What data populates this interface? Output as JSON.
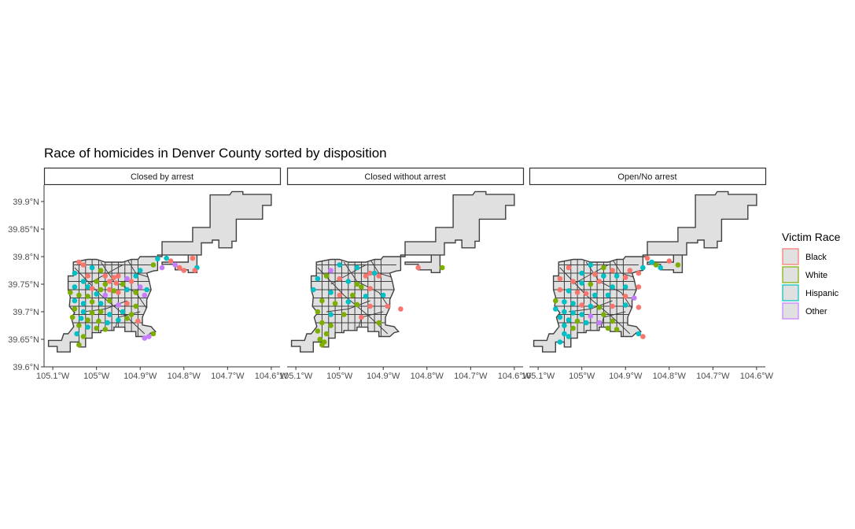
{
  "title": "Race of homicides in Denver County sorted by disposition",
  "colors": {
    "Black": "#F8766D",
    "White": "#7CAE00",
    "Hispanic": "#00BFC4",
    "Other": "#C77CFF"
  },
  "chart_data": {
    "type": "scatter",
    "title": "Race of homicides in Denver County sorted by disposition",
    "xlabel": "",
    "ylabel": "",
    "xlim": [
      -105.12,
      -104.58
    ],
    "ylim": [
      39.6,
      39.93
    ],
    "x_ticks": [
      -105.1,
      -105.0,
      -104.9,
      -104.8,
      -104.7,
      -104.6
    ],
    "x_tick_labels": [
      "105.1°W",
      "105°W",
      "104.9°W",
      "104.8°W",
      "104.7°W",
      "104.6°W"
    ],
    "y_ticks": [
      39.6,
      39.65,
      39.7,
      39.75,
      39.8,
      39.85,
      39.9
    ],
    "y_tick_labels": [
      "39.6°N",
      "39.65°N",
      "39.7°N",
      "39.75°N",
      "39.8°N",
      "39.85°N",
      "39.9°N"
    ],
    "grid": false,
    "legend": {
      "title": "Victim Race",
      "position": "right",
      "entries": [
        "Black",
        "White",
        "Hispanic",
        "Other"
      ]
    },
    "panels": [
      {
        "name": "Closed by arrest",
        "points": [
          [
            -105.04,
            39.79,
            "Black"
          ],
          [
            -105.03,
            39.785,
            "Black"
          ],
          [
            -105.01,
            39.78,
            "Hispanic"
          ],
          [
            -104.99,
            39.775,
            "White"
          ],
          [
            -105.05,
            39.77,
            "Hispanic"
          ],
          [
            -105.02,
            39.765,
            "Black"
          ],
          [
            -104.98,
            39.765,
            "Black"
          ],
          [
            -104.96,
            39.762,
            "Black"
          ],
          [
            -104.95,
            39.765,
            "Black"
          ],
          [
            -104.93,
            39.76,
            "Other"
          ],
          [
            -104.91,
            39.765,
            "Hispanic"
          ],
          [
            -105.03,
            39.755,
            "Hispanic"
          ],
          [
            -105.0,
            39.755,
            "White"
          ],
          [
            -104.98,
            39.75,
            "White"
          ],
          [
            -104.97,
            39.755,
            "Black"
          ],
          [
            -104.955,
            39.752,
            "Black"
          ],
          [
            -104.94,
            39.75,
            "White"
          ],
          [
            -104.92,
            39.755,
            "Black"
          ],
          [
            -105.05,
            39.745,
            "Hispanic"
          ],
          [
            -105.02,
            39.745,
            "Hispanic"
          ],
          [
            -105.01,
            39.742,
            "Black"
          ],
          [
            -104.99,
            39.74,
            "White"
          ],
          [
            -104.97,
            39.74,
            "Black"
          ],
          [
            -104.96,
            39.738,
            "White"
          ],
          [
            -104.93,
            39.74,
            "Hispanic"
          ],
          [
            -104.9,
            39.745,
            "Other"
          ],
          [
            -104.885,
            39.74,
            "Hispanic"
          ],
          [
            -105.06,
            39.735,
            "White"
          ],
          [
            -105.04,
            39.73,
            "White"
          ],
          [
            -105.02,
            39.728,
            "White"
          ],
          [
            -105.0,
            39.732,
            "Hispanic"
          ],
          [
            -104.98,
            39.73,
            "Other"
          ],
          [
            -104.95,
            39.735,
            "Black"
          ],
          [
            -104.91,
            39.735,
            "White"
          ],
          [
            -104.89,
            39.73,
            "Other"
          ],
          [
            -105.05,
            39.72,
            "Hispanic"
          ],
          [
            -105.03,
            39.715,
            "Hispanic"
          ],
          [
            -105.01,
            39.718,
            "White"
          ],
          [
            -104.99,
            39.715,
            "Hispanic"
          ],
          [
            -104.97,
            39.72,
            "White"
          ],
          [
            -104.95,
            39.712,
            "Other"
          ],
          [
            -104.93,
            39.715,
            "Black"
          ],
          [
            -104.91,
            39.71,
            "White"
          ],
          [
            -105.05,
            39.705,
            "White"
          ],
          [
            -105.03,
            39.7,
            "Hispanic"
          ],
          [
            -105.01,
            39.698,
            "White"
          ],
          [
            -104.99,
            39.7,
            "White"
          ],
          [
            -104.97,
            39.695,
            "Hispanic"
          ],
          [
            -104.94,
            39.7,
            "Hispanic"
          ],
          [
            -104.92,
            39.695,
            "White"
          ],
          [
            -105.055,
            39.69,
            "White"
          ],
          [
            -105.035,
            39.688,
            "Hispanic"
          ],
          [
            -105.02,
            39.685,
            "White"
          ],
          [
            -104.995,
            39.683,
            "White"
          ],
          [
            -104.975,
            39.68,
            "Hispanic"
          ],
          [
            -104.95,
            39.685,
            "Hispanic"
          ],
          [
            -104.93,
            39.688,
            "White"
          ],
          [
            -104.905,
            39.683,
            "Black"
          ],
          [
            -105.04,
            39.675,
            "White"
          ],
          [
            -105.02,
            39.672,
            "Hispanic"
          ],
          [
            -105.0,
            39.67,
            "White"
          ],
          [
            -104.98,
            39.668,
            "White"
          ],
          [
            -105.045,
            39.66,
            "Hispanic"
          ],
          [
            -105.03,
            39.655,
            "White"
          ],
          [
            -105.04,
            39.64,
            "White"
          ],
          [
            -104.87,
            39.66,
            "White"
          ],
          [
            -104.88,
            39.655,
            "Other"
          ],
          [
            -104.89,
            39.652,
            "Other"
          ],
          [
            -104.86,
            39.796,
            "Hispanic"
          ],
          [
            -104.84,
            39.797,
            "Hispanic"
          ],
          [
            -104.83,
            39.792,
            "Black"
          ],
          [
            -104.82,
            39.785,
            "Other"
          ],
          [
            -104.81,
            39.78,
            "Black"
          ],
          [
            -104.8,
            39.775,
            "Black"
          ],
          [
            -104.78,
            39.797,
            "Black"
          ],
          [
            -104.77,
            39.78,
            "Hispanic"
          ],
          [
            -104.775,
            39.775,
            "Black"
          ],
          [
            -104.87,
            39.785,
            "White"
          ],
          [
            -104.85,
            39.78,
            "Other"
          ],
          [
            -104.9,
            39.775,
            "Hispanic"
          ]
        ]
      },
      {
        "name": "Closed without arrest",
        "points": [
          [
            -105.0,
            39.785,
            "Hispanic"
          ],
          [
            -104.96,
            39.78,
            "Hispanic"
          ],
          [
            -104.93,
            39.77,
            "Black"
          ],
          [
            -104.91,
            39.765,
            "Black"
          ],
          [
            -104.92,
            39.77,
            "Hispanic"
          ],
          [
            -104.94,
            39.765,
            "Black"
          ],
          [
            -105.05,
            39.76,
            "Hispanic"
          ],
          [
            -105.03,
            39.765,
            "White"
          ],
          [
            -105.0,
            39.76,
            "Black"
          ],
          [
            -104.98,
            39.755,
            "Hispanic"
          ],
          [
            -104.96,
            39.75,
            "White"
          ],
          [
            -104.95,
            39.745,
            "White"
          ],
          [
            -104.93,
            39.742,
            "Black"
          ],
          [
            -105.06,
            39.74,
            "Hispanic"
          ],
          [
            -105.02,
            39.735,
            "Hispanic"
          ],
          [
            -105.0,
            39.73,
            "Black"
          ],
          [
            -104.97,
            39.73,
            "White"
          ],
          [
            -104.94,
            39.728,
            "Hispanic"
          ],
          [
            -104.9,
            39.73,
            "Hispanic"
          ],
          [
            -105.04,
            39.72,
            "White"
          ],
          [
            -105.01,
            39.715,
            "White"
          ],
          [
            -104.98,
            39.718,
            "Hispanic"
          ],
          [
            -104.96,
            39.713,
            "White"
          ],
          [
            -104.93,
            39.71,
            "Black"
          ],
          [
            -104.89,
            39.71,
            "Black"
          ],
          [
            -104.86,
            39.705,
            "Black"
          ],
          [
            -105.05,
            39.7,
            "White"
          ],
          [
            -105.02,
            39.695,
            "Hispanic"
          ],
          [
            -104.99,
            39.695,
            "White"
          ],
          [
            -104.95,
            39.69,
            "Black"
          ],
          [
            -105.04,
            39.68,
            "White"
          ],
          [
            -105.02,
            39.675,
            "White"
          ],
          [
            -104.91,
            39.68,
            "White"
          ],
          [
            -105.05,
            39.665,
            "White"
          ],
          [
            -105.03,
            39.66,
            "White"
          ],
          [
            -105.045,
            39.65,
            "White"
          ],
          [
            -105.035,
            39.645,
            "White"
          ],
          [
            -105.04,
            39.64,
            "White"
          ],
          [
            -104.82,
            39.78,
            "Black"
          ],
          [
            -104.765,
            39.78,
            "White"
          ],
          [
            -105.02,
            39.775,
            "Other"
          ]
        ]
      },
      {
        "name": "Open/No arrest",
        "points": [
          [
            -104.98,
            39.785,
            "Hispanic"
          ],
          [
            -104.95,
            39.78,
            "White"
          ],
          [
            -104.93,
            39.775,
            "Black"
          ],
          [
            -105.03,
            39.78,
            "Black"
          ],
          [
            -105.0,
            39.77,
            "Hispanic"
          ],
          [
            -104.97,
            39.768,
            "Black"
          ],
          [
            -104.95,
            39.765,
            "Hispanic"
          ],
          [
            -104.92,
            39.765,
            "Hispanic"
          ],
          [
            -104.9,
            39.762,
            "Black"
          ],
          [
            -105.05,
            39.76,
            "Black"
          ],
          [
            -105.02,
            39.755,
            "Black"
          ],
          [
            -105.0,
            39.752,
            "Hispanic"
          ],
          [
            -104.98,
            39.75,
            "White"
          ],
          [
            -104.96,
            39.755,
            "Black"
          ],
          [
            -104.93,
            39.745,
            "Hispanic"
          ],
          [
            -104.9,
            39.745,
            "Hispanic"
          ],
          [
            -104.87,
            39.745,
            "Black"
          ],
          [
            -105.05,
            39.74,
            "Black"
          ],
          [
            -105.03,
            39.738,
            "Hispanic"
          ],
          [
            -105.01,
            39.735,
            "Black"
          ],
          [
            -104.99,
            39.733,
            "Black"
          ],
          [
            -104.97,
            39.73,
            "Hispanic"
          ],
          [
            -104.94,
            39.73,
            "Hispanic"
          ],
          [
            -104.9,
            39.728,
            "Black"
          ],
          [
            -104.88,
            39.725,
            "Other"
          ],
          [
            -105.06,
            39.72,
            "White"
          ],
          [
            -105.04,
            39.718,
            "Hispanic"
          ],
          [
            -105.02,
            39.715,
            "Hispanic"
          ],
          [
            -105.0,
            39.712,
            "Black"
          ],
          [
            -104.98,
            39.71,
            "Hispanic"
          ],
          [
            -104.96,
            39.708,
            "White"
          ],
          [
            -104.93,
            39.71,
            "Black"
          ],
          [
            -104.9,
            39.712,
            "Hispanic"
          ],
          [
            -104.87,
            39.708,
            "Black"
          ],
          [
            -105.06,
            39.705,
            "Hispanic"
          ],
          [
            -105.04,
            39.7,
            "Hispanic"
          ],
          [
            -105.02,
            39.698,
            "Hispanic"
          ],
          [
            -105.0,
            39.695,
            "Hispanic"
          ],
          [
            -104.98,
            39.692,
            "Other"
          ],
          [
            -104.95,
            39.695,
            "White"
          ],
          [
            -105.05,
            39.69,
            "Hispanic"
          ],
          [
            -105.03,
            39.685,
            "Hispanic"
          ],
          [
            -105.01,
            39.683,
            "White"
          ],
          [
            -104.99,
            39.68,
            "Hispanic"
          ],
          [
            -104.96,
            39.68,
            "Other"
          ],
          [
            -104.93,
            39.683,
            "White"
          ],
          [
            -105.04,
            39.675,
            "Hispanic"
          ],
          [
            -105.02,
            39.67,
            "White"
          ],
          [
            -104.94,
            39.67,
            "White"
          ],
          [
            -104.92,
            39.668,
            "White"
          ],
          [
            -105.04,
            39.66,
            "Hispanic"
          ],
          [
            -105.03,
            39.655,
            "Hispanic"
          ],
          [
            -105.05,
            39.645,
            "Hispanic"
          ],
          [
            -104.87,
            39.66,
            "Hispanic"
          ],
          [
            -104.86,
            39.655,
            "Black"
          ],
          [
            -104.85,
            39.797,
            "Black"
          ],
          [
            -104.84,
            39.79,
            "Hispanic"
          ],
          [
            -104.83,
            39.785,
            "White"
          ],
          [
            -104.82,
            39.78,
            "Hispanic"
          ],
          [
            -104.8,
            39.792,
            "Black"
          ],
          [
            -104.78,
            39.785,
            "White"
          ],
          [
            -104.86,
            39.78,
            "Hispanic"
          ],
          [
            -104.87,
            39.77,
            "Black"
          ],
          [
            -104.89,
            39.775,
            "Black"
          ]
        ]
      }
    ]
  }
}
